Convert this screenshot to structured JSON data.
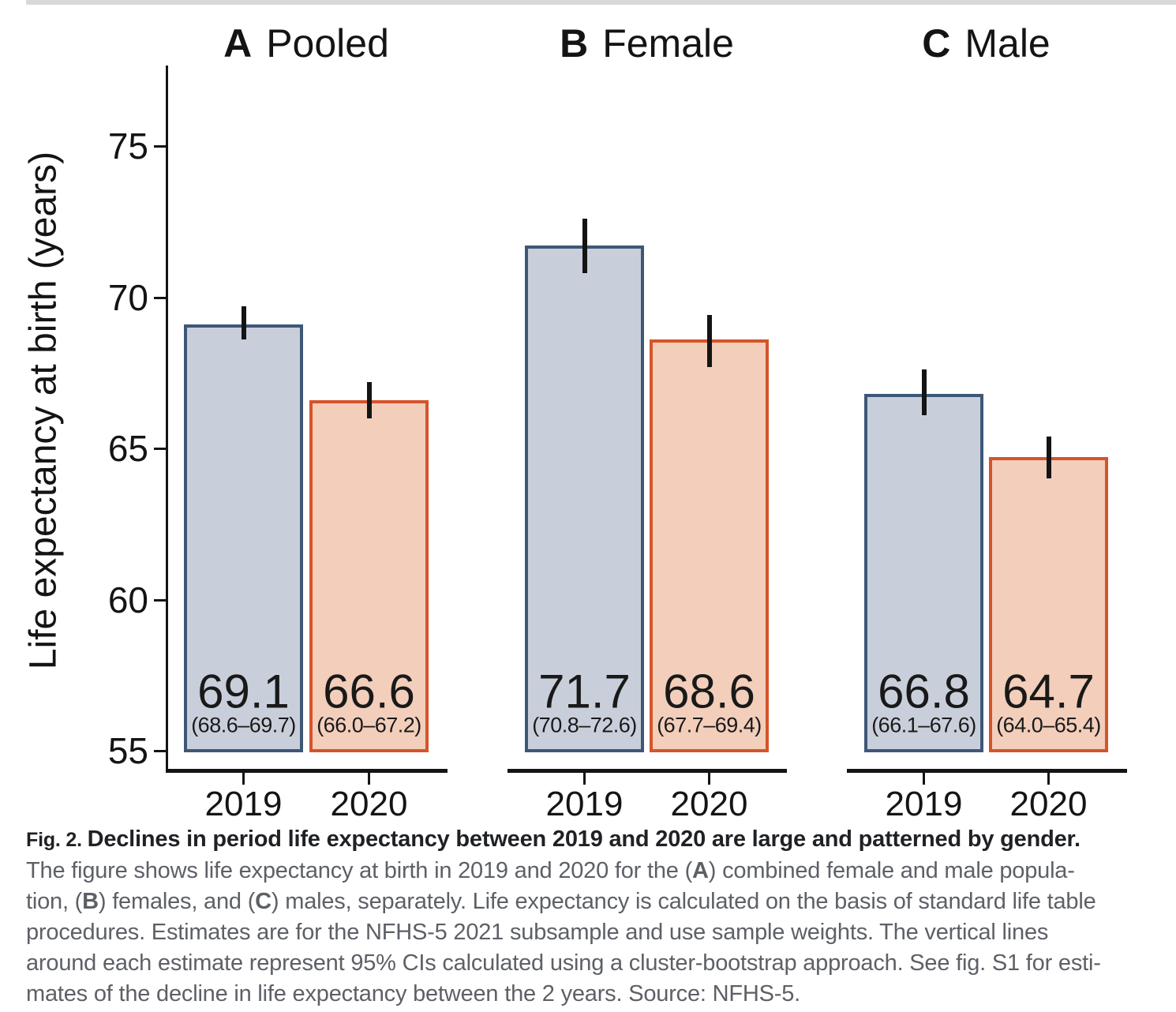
{
  "chart_data": {
    "type": "bar",
    "title": "",
    "xlabel": "",
    "ylabel": "Life expectancy at birth (years)",
    "ylim": [
      55,
      77.5
    ],
    "yticks": [
      "55",
      "60",
      "65",
      "70",
      "75"
    ],
    "ytick_values": [
      55,
      60,
      65,
      70,
      75
    ],
    "categories": [
      "2019",
      "2020"
    ],
    "grid": "off",
    "legend": "none",
    "error_bars": "95% CI",
    "series_styles": [
      {
        "name": "2019",
        "fill": "#c9cfda",
        "stroke": "#3e5777"
      },
      {
        "name": "2020",
        "fill": "#f2cebb",
        "stroke": "#d5542a"
      }
    ],
    "panels": [
      {
        "panel_letter": "A",
        "panel_title": "Pooled",
        "bars": [
          {
            "category": "2019",
            "value": 69.1,
            "value_label": "69.1",
            "ci_low": 68.6,
            "ci_high": 69.7,
            "ci_label": "(68.6–69.7)"
          },
          {
            "category": "2020",
            "value": 66.6,
            "value_label": "66.6",
            "ci_low": 66.0,
            "ci_high": 67.2,
            "ci_label": "(66.0–67.2)"
          }
        ]
      },
      {
        "panel_letter": "B",
        "panel_title": "Female",
        "bars": [
          {
            "category": "2019",
            "value": 71.7,
            "value_label": "71.7",
            "ci_low": 70.8,
            "ci_high": 72.6,
            "ci_label": "(70.8–72.6)"
          },
          {
            "category": "2020",
            "value": 68.6,
            "value_label": "68.6",
            "ci_low": 67.7,
            "ci_high": 69.4,
            "ci_label": "(67.7–69.4)"
          }
        ]
      },
      {
        "panel_letter": "C",
        "panel_title": "Male",
        "bars": [
          {
            "category": "2019",
            "value": 66.8,
            "value_label": "66.8",
            "ci_low": 66.1,
            "ci_high": 67.6,
            "ci_label": "(66.1–67.6)"
          },
          {
            "category": "2020",
            "value": 64.7,
            "value_label": "64.7",
            "ci_low": 64.0,
            "ci_high": 65.4,
            "ci_label": "(64.0–65.4)"
          }
        ]
      }
    ]
  },
  "caption": {
    "lines": [
      {
        "dark": true,
        "segments": [
          {
            "text": "Fig. 2. ",
            "bold": true,
            "small": true
          },
          {
            "text": "Declines in period life expectancy between 2019 and 2020 are large and patterned by gender.",
            "bold": true
          }
        ]
      },
      {
        "segments": [
          {
            "text": "The figure shows life expectancy at birth in 2019 and 2020 for the ("
          },
          {
            "text": "A",
            "bold": true
          },
          {
            "text": ") combined female and male popula-"
          }
        ]
      },
      {
        "segments": [
          {
            "text": "tion, ("
          },
          {
            "text": "B",
            "bold": true
          },
          {
            "text": ") females, and ("
          },
          {
            "text": "C",
            "bold": true
          },
          {
            "text": ") males, separately. Life expectancy is calculated on the basis of standard life table"
          }
        ]
      },
      {
        "segments": [
          {
            "text": "procedures. Estimates are for the NFHS-5 2021 subsample and use sample weights. The vertical lines"
          }
        ]
      },
      {
        "segments": [
          {
            "text": "around each estimate represent 95% CIs calculated using a cluster-bootstrap approach. See fig. S1 for esti-"
          }
        ]
      },
      {
        "segments": [
          {
            "text": "mates of the decline in life expectancy between the 2 years. Source: NFHS-5."
          }
        ]
      }
    ]
  },
  "decor": {
    "top_strip_color": "#d8d8d8"
  }
}
